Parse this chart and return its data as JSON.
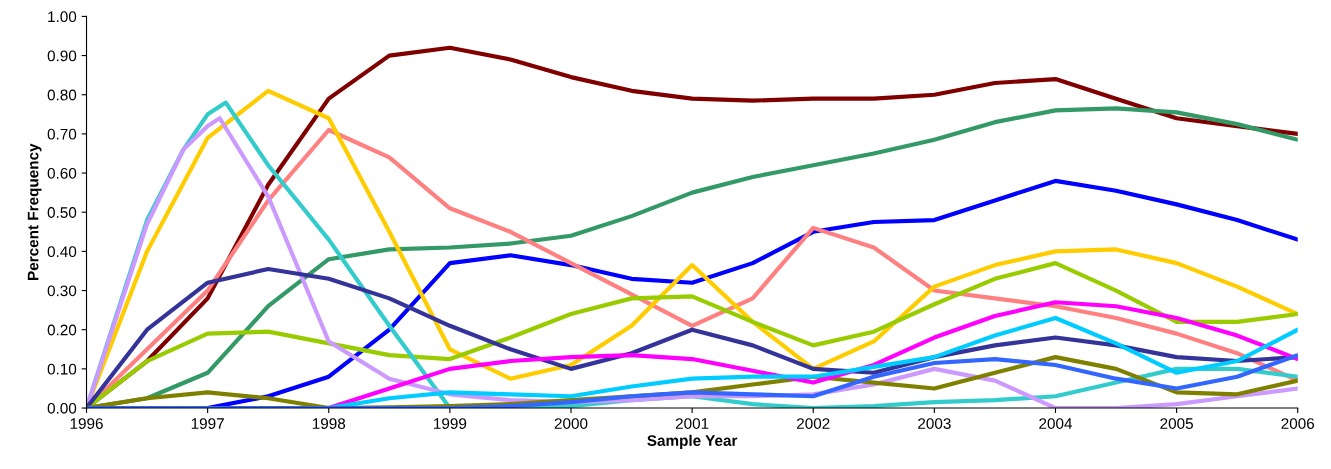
{
  "chart_data": {
    "type": "line",
    "xlabel": "Sample Year",
    "ylabel": "Percent Frequency",
    "x": [
      1996,
      1996.5,
      1997,
      1997.5,
      1998,
      1998.5,
      1999,
      1999.5,
      2000,
      2000.5,
      2001,
      2001.5,
      2002,
      2002.5,
      2003,
      2003.5,
      2004,
      2004.5,
      2005,
      2005.5,
      2006
    ],
    "xlim": [
      1996,
      2006
    ],
    "xticks": [
      1996,
      1997,
      1998,
      1999,
      2000,
      2001,
      2002,
      2003,
      2004,
      2005,
      2006
    ],
    "ylim": [
      0,
      1
    ],
    "yticks": [
      {
        "value": 0,
        "label": "0.00"
      },
      {
        "value": 0.1,
        "label": "0.10"
      },
      {
        "value": 0.2,
        "label": "0.20"
      },
      {
        "value": 0.3,
        "label": "0.30"
      },
      {
        "value": 0.4,
        "label": "0.40"
      },
      {
        "value": 0.5,
        "label": "0.50"
      },
      {
        "value": 0.6,
        "label": "0.60"
      },
      {
        "value": 0.7,
        "label": "0.70"
      },
      {
        "value": 0.8,
        "label": "0.80"
      },
      {
        "value": 0.9,
        "label": "0.90"
      },
      {
        "value": 1,
        "label": "1.00"
      }
    ],
    "grid": false,
    "marker": "none",
    "line_style": "solid",
    "series": [
      {
        "color": "#800000",
        "values": [
          0,
          0.12,
          0.28,
          0.57,
          0.79,
          0.9,
          0.92,
          0.89,
          0.845,
          0.81,
          0.79,
          0.785,
          0.79,
          0.79,
          0.8,
          0.83,
          0.84,
          0.79,
          0.74,
          0.72,
          0.7
        ]
      },
      {
        "color": "#339966",
        "values": [
          0,
          0.025,
          0.09,
          0.26,
          0.38,
          0.405,
          0.41,
          0.42,
          0.44,
          0.49,
          0.55,
          0.59,
          0.62,
          0.65,
          0.685,
          0.73,
          0.76,
          0.765,
          0.755,
          0.725,
          0.685
        ]
      },
      {
        "color": "#0000ff",
        "values": [
          0,
          0,
          0,
          0.03,
          0.08,
          0.2,
          0.37,
          0.39,
          0.365,
          0.33,
          0.32,
          0.37,
          0.45,
          0.475,
          0.48,
          0.53,
          0.58,
          0.555,
          0.52,
          0.48,
          0.43
        ]
      },
      {
        "color": "#ff8080",
        "values": [
          0,
          0.15,
          0.3,
          0.53,
          0.71,
          0.64,
          0.51,
          0.45,
          0.37,
          0.29,
          0.21,
          0.28,
          0.46,
          0.41,
          0.3,
          0.28,
          0.26,
          0.23,
          0.19,
          0.14,
          0.07
        ]
      },
      {
        "color": "#ffcc00",
        "values": [
          0,
          0.4,
          0.69,
          0.81,
          0.74,
          0.45,
          0.15,
          0.075,
          0.11,
          0.21,
          0.365,
          0.22,
          0.1,
          0.17,
          0.31,
          0.365,
          0.4,
          0.405,
          0.37,
          0.31,
          0.24
        ]
      },
      {
        "color": "#99cc00",
        "values": [
          0,
          0.12,
          0.19,
          0.195,
          0.165,
          0.135,
          0.125,
          0.18,
          0.24,
          0.28,
          0.285,
          0.22,
          0.16,
          0.195,
          0.265,
          0.33,
          0.37,
          0.3,
          0.22,
          0.22,
          0.24
        ]
      },
      {
        "color": "#33cccc",
        "x": [
          1996,
          1996.5,
          1996.8,
          1997,
          1997.15,
          1997.5,
          1998,
          1998.5,
          1999,
          1999.5,
          2000,
          2000.5,
          2001,
          2001.5,
          2002,
          2002.5,
          2003,
          2003.5,
          2004,
          2004.5,
          2005,
          2005.5,
          2006
        ],
        "values": [
          0,
          0.48,
          0.66,
          0.75,
          0.78,
          0.62,
          0.43,
          0.21,
          0,
          0,
          0.005,
          0.02,
          0.03,
          0.01,
          0,
          0.005,
          0.015,
          0.02,
          0.03,
          0.065,
          0.1,
          0.1,
          0.08
        ]
      },
      {
        "color": "#cc99ff",
        "x": [
          1996,
          1996.5,
          1996.8,
          1997,
          1997.1,
          1997.5,
          1998,
          1998.5,
          1999,
          1999.5,
          2000,
          2000.5,
          2001,
          2001.5,
          2002,
          2002.5,
          2003,
          2003.5,
          2004,
          2004.5,
          2005,
          2005.5,
          2006
        ],
        "values": [
          0,
          0.47,
          0.66,
          0.72,
          0.74,
          0.54,
          0.17,
          0.075,
          0.035,
          0.02,
          0.015,
          0.02,
          0.03,
          0.03,
          0.035,
          0.06,
          0.1,
          0.07,
          0,
          0,
          0.01,
          0.03,
          0.05
        ]
      },
      {
        "color": "#333399",
        "values": [
          0,
          0.2,
          0.32,
          0.355,
          0.33,
          0.28,
          0.21,
          0.15,
          0.1,
          0.14,
          0.2,
          0.16,
          0.1,
          0.09,
          0.13,
          0.16,
          0.18,
          0.16,
          0.13,
          0.12,
          0.13
        ]
      },
      {
        "color": "#808000",
        "values": [
          0,
          0.025,
          0.04,
          0.025,
          0,
          0.002,
          0.005,
          0.01,
          0.02,
          0.03,
          0.04,
          0.06,
          0.08,
          0.065,
          0.05,
          0.09,
          0.13,
          0.1,
          0.04,
          0.035,
          0.07
        ]
      },
      {
        "color": "#ff00ff",
        "values": [
          null,
          null,
          null,
          null,
          0,
          0.05,
          0.1,
          0.12,
          0.13,
          0.135,
          0.125,
          0.095,
          0.065,
          0.11,
          0.18,
          0.235,
          0.27,
          0.26,
          0.23,
          0.185,
          0.125
        ]
      },
      {
        "color": "#00ccff",
        "values": [
          null,
          null,
          null,
          null,
          0,
          0.025,
          0.04,
          0.035,
          0.03,
          0.055,
          0.075,
          0.08,
          0.08,
          0.105,
          0.13,
          0.185,
          0.23,
          0.165,
          0.09,
          0.12,
          0.2
        ]
      },
      {
        "color": "#3366ff",
        "values": [
          0,
          0,
          0,
          0,
          0,
          0,
          0,
          0.005,
          0.015,
          0.03,
          0.04,
          0.035,
          0.03,
          0.08,
          0.115,
          0.125,
          0.11,
          0.075,
          0.05,
          0.08,
          0.135
        ]
      }
    ]
  }
}
